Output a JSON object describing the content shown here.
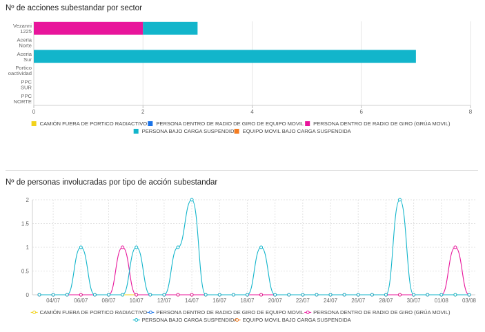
{
  "colors": {
    "yellow": "#f2d21b",
    "blue": "#1a73e8",
    "magenta": "#e8159b",
    "cyan": "#12b5cb",
    "orange": "#f47c20"
  },
  "legend_items": [
    {
      "label": "CAMIÓN FUERA DE PORTICO RADIACTIVO",
      "color": "#f2d21b"
    },
    {
      "label": "PERSONA DENTRO DE RADIO DE GIRO DE EQUIPO MOVIL",
      "color": "#1a73e8"
    },
    {
      "label": "PERSONA DENTRO DE RADIO DE GIRO (GRÚA MOVIL)",
      "color": "#e8159b"
    },
    {
      "label": "PERSONA BAJO CARGA SUSPENDIDA",
      "color": "#12b5cb"
    },
    {
      "label": "EQUIPO MOVIL BAJO CARGA SUSPENDIDA",
      "color": "#f47c20"
    }
  ],
  "chart_data": [
    {
      "type": "bar",
      "orientation": "horizontal",
      "stacked": true,
      "title": "Nº de acciones subestandar por sector",
      "categories": [
        [
          "Vezanni",
          "1225"
        ],
        [
          "Aceria",
          "Norte"
        ],
        [
          "Aceria",
          "Sur"
        ],
        [
          "Portico",
          "oactividad"
        ],
        [
          "PPC",
          "SUR"
        ],
        [
          "PPC",
          "NORTE"
        ]
      ],
      "series": [
        {
          "name": "CAMIÓN FUERA DE PORTICO RADIACTIVO",
          "color": "#f2d21b",
          "values": [
            0,
            0,
            0,
            0,
            0,
            0
          ]
        },
        {
          "name": "PERSONA DENTRO DE RADIO DE GIRO DE EQUIPO MOVIL",
          "color": "#1a73e8",
          "values": [
            0,
            0,
            0,
            0,
            0,
            0
          ]
        },
        {
          "name": "PERSONA DENTRO DE RADIO DE GIRO (GRÚA MOVIL)",
          "color": "#e8159b",
          "values": [
            2,
            0,
            0,
            0,
            0,
            0
          ]
        },
        {
          "name": "PERSONA BAJO CARGA SUSPENDIDA",
          "color": "#12b5cb",
          "values": [
            1,
            0,
            7,
            0,
            0,
            0
          ]
        },
        {
          "name": "EQUIPO MOVIL BAJO CARGA SUSPENDIDA",
          "color": "#f47c20",
          "values": [
            0,
            0,
            0,
            0,
            0,
            0
          ]
        }
      ],
      "xlim": [
        0,
        8
      ],
      "xticks": [
        "0",
        "2",
        "4",
        "6",
        "8"
      ],
      "grid": true,
      "legend": "bottom"
    },
    {
      "type": "line",
      "title": "Nº de personas involucradas por tipo de acción subestandar",
      "x_dates": [
        "03/07",
        "04/07",
        "05/07",
        "06/07",
        "07/07",
        "08/07",
        "09/07",
        "10/07",
        "11/07",
        "12/07",
        "13/07",
        "14/07",
        "15/07",
        "16/07",
        "17/07",
        "18/07",
        "19/07",
        "20/07",
        "21/07",
        "22/07",
        "23/07",
        "24/07",
        "25/07",
        "26/07",
        "27/07",
        "28/07",
        "29/07",
        "30/07",
        "31/07",
        "01/08",
        "02/08",
        "03/08"
      ],
      "xtick_labels": [
        "04/07",
        "06/07",
        "08/07",
        "10/07",
        "12/07",
        "14/07",
        "16/07",
        "18/07",
        "20/07",
        "22/07",
        "24/07",
        "26/07",
        "28/07",
        "30/07",
        "01/08",
        "03/08"
      ],
      "ylim": [
        0,
        2
      ],
      "yticks": [
        "0",
        "0.5",
        "1",
        "1.5",
        "2"
      ],
      "series": [
        {
          "name": "CAMIÓN FUERA DE PORTICO RADIACTIVO",
          "color": "#f2d21b",
          "values": [
            0,
            0,
            0,
            0,
            0,
            0,
            0,
            0,
            0,
            0,
            0,
            0,
            0,
            0,
            0,
            0,
            0,
            0,
            0,
            0,
            0,
            0,
            0,
            0,
            0,
            0,
            0,
            0,
            0,
            0,
            0,
            0
          ]
        },
        {
          "name": "PERSONA DENTRO DE RADIO DE GIRO DE EQUIPO MOVIL",
          "color": "#1a73e8",
          "values": [
            0,
            0,
            0,
            0,
            0,
            0,
            0,
            0,
            0,
            0,
            0,
            0,
            0,
            0,
            0,
            0,
            0,
            0,
            0,
            0,
            0,
            0,
            0,
            0,
            0,
            0,
            0,
            0,
            0,
            0,
            0,
            0
          ]
        },
        {
          "name": "PERSONA DENTRO DE RADIO DE GIRO (GRÚA MOVIL)",
          "color": "#e8159b",
          "values": [
            0,
            0,
            0,
            0,
            0,
            0,
            1,
            0,
            0,
            0,
            0,
            0,
            0,
            0,
            0,
            0,
            0,
            0,
            0,
            0,
            0,
            0,
            0,
            0,
            0,
            0,
            0,
            0,
            0,
            0,
            1,
            0
          ]
        },
        {
          "name": "PERSONA BAJO CARGA SUSPENDIDA",
          "color": "#12b5cb",
          "values": [
            0,
            0,
            0,
            1,
            0,
            0,
            0,
            1,
            0,
            0,
            1,
            2,
            0,
            0,
            0,
            0,
            1,
            0,
            0,
            0,
            0,
            0,
            0,
            0,
            0,
            0,
            2,
            0,
            0,
            0,
            0,
            0
          ]
        },
        {
          "name": "EQUIPO MOVIL BAJO CARGA SUSPENDIDA",
          "color": "#f47c20",
          "values": [
            0,
            0,
            0,
            0,
            0,
            0,
            0,
            0,
            0,
            0,
            0,
            0,
            0,
            0,
            0,
            0,
            0,
            0,
            0,
            0,
            0,
            0,
            0,
            0,
            0,
            0,
            0,
            0,
            0,
            0,
            0,
            0
          ]
        }
      ],
      "grid": true,
      "legend": "bottom"
    }
  ]
}
